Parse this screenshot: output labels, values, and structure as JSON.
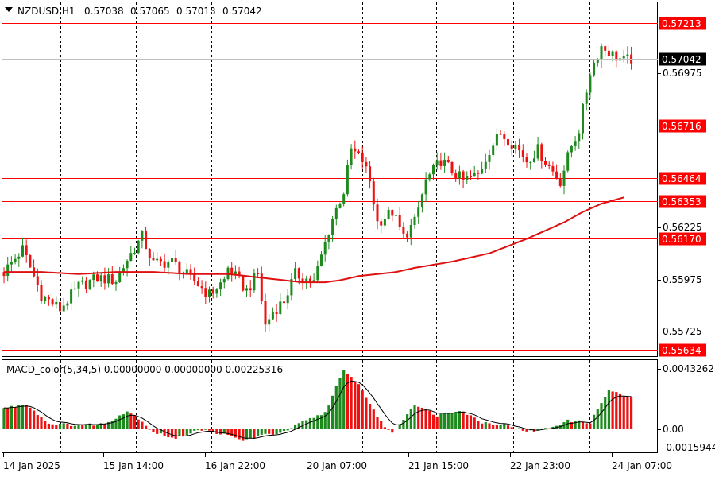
{
  "header": {
    "symbol": "NZDUSD,H1",
    "open": "0.57038",
    "high": "0.57065",
    "low": "0.57013",
    "close": "0.57042"
  },
  "colors": {
    "bull": "#1e8a1e",
    "bear": "#ee1111",
    "level": "#ff0000",
    "ma": "#dd1111",
    "grid": "#000000",
    "current_price_bg": "#000000"
  },
  "price_axis": {
    "ticks": [
      "0.56975",
      "0.56225",
      "0.55975",
      "0.55725"
    ]
  },
  "levels": [
    {
      "price": 0.57213,
      "label": "0.57213"
    },
    {
      "price": 0.56716,
      "label": "0.56716"
    },
    {
      "price": 0.56464,
      "label": "0.56464"
    },
    {
      "price": 0.56353,
      "label": "0.56353"
    },
    {
      "price": 0.5617,
      "label": "0.56170"
    },
    {
      "price": 0.55634,
      "label": "0.55634"
    }
  ],
  "current_price": {
    "price": 0.57042,
    "label": "0.57042"
  },
  "macd": {
    "title": "MACD_color(5,34,5) 0.00000000 0.00000000 0.00225316",
    "ticks": [
      "0.0043262",
      "0.00",
      "-0.0015944"
    ]
  },
  "time_axis": {
    "labels": [
      "14 Jan 2025",
      "15 Jan 14:00",
      "16 Jan 22:00",
      "20 Jan 07:00",
      "21 Jan 15:00",
      "22 Jan 23:00",
      "24 Jan 07:00"
    ]
  },
  "chart_data": {
    "type": "candlestick",
    "symbol": "NZDUSD",
    "timeframe": "H1",
    "y_range": [
      0.556,
      0.5725
    ],
    "close_path": [
      [
        0,
        0.5601
      ],
      [
        5,
        0.5612
      ],
      [
        10,
        0.559
      ],
      [
        15,
        0.5583
      ],
      [
        20,
        0.5594
      ],
      [
        25,
        0.5598
      ],
      [
        30,
        0.5597
      ],
      [
        33,
        0.5607
      ],
      [
        37,
        0.5618
      ],
      [
        40,
        0.5605
      ],
      [
        45,
        0.5606
      ],
      [
        48,
        0.5601
      ],
      [
        52,
        0.5595
      ],
      [
        55,
        0.559
      ],
      [
        59,
        0.5597
      ],
      [
        60,
        0.5603
      ],
      [
        65,
        0.5592
      ],
      [
        68,
        0.56
      ],
      [
        70,
        0.5575
      ],
      [
        72,
        0.5582
      ],
      [
        75,
        0.5587
      ],
      [
        78,
        0.56
      ],
      [
        83,
        0.5596
      ],
      [
        86,
        0.5615
      ],
      [
        88,
        0.5627
      ],
      [
        91,
        0.564
      ],
      [
        93,
        0.566
      ],
      [
        96,
        0.5655
      ],
      [
        98,
        0.5645
      ],
      [
        100,
        0.5625
      ],
      [
        104,
        0.563
      ],
      [
        107,
        0.5618
      ],
      [
        110,
        0.5625
      ],
      [
        113,
        0.5645
      ],
      [
        117,
        0.5655
      ],
      [
        120,
        0.565
      ],
      [
        123,
        0.5645
      ],
      [
        127,
        0.5648
      ],
      [
        130,
        0.566
      ],
      [
        133,
        0.5668
      ],
      [
        137,
        0.5662
      ],
      [
        140,
        0.5655
      ],
      [
        143,
        0.566
      ],
      [
        146,
        0.5652
      ],
      [
        149,
        0.5645
      ],
      [
        152,
        0.5662
      ],
      [
        154,
        0.567
      ],
      [
        157,
        0.5698
      ],
      [
        160,
        0.571
      ],
      [
        163,
        0.5706
      ],
      [
        166,
        0.5703
      ],
      [
        168,
        0.5704
      ]
    ],
    "moving_average": [
      [
        0,
        0.5601
      ],
      [
        10,
        0.5601
      ],
      [
        20,
        0.56
      ],
      [
        30,
        0.5601
      ],
      [
        40,
        0.5601
      ],
      [
        50,
        0.56
      ],
      [
        60,
        0.56
      ],
      [
        70,
        0.5598
      ],
      [
        80,
        0.5596
      ],
      [
        86,
        0.5596
      ],
      [
        90,
        0.5597
      ],
      [
        95,
        0.5599
      ],
      [
        100,
        0.56
      ],
      [
        105,
        0.5601
      ],
      [
        110,
        0.5603
      ],
      [
        120,
        0.5606
      ],
      [
        130,
        0.561
      ],
      [
        140,
        0.5617
      ],
      [
        150,
        0.5625
      ],
      [
        155,
        0.563
      ],
      [
        160,
        0.5634
      ],
      [
        166,
        0.5637
      ]
    ],
    "macd_range": [
      -0.0015944,
      0.0043262
    ],
    "macd_path": [
      [
        0,
        0.0015
      ],
      [
        6,
        0.0018
      ],
      [
        12,
        0.0004
      ],
      [
        20,
        0.0003
      ],
      [
        27,
        0.0004
      ],
      [
        33,
        0.0013
      ],
      [
        36,
        0.0008
      ],
      [
        40,
        -0.0002
      ],
      [
        46,
        -0.0007
      ],
      [
        52,
        0.0
      ],
      [
        58,
        -0.0003
      ],
      [
        64,
        -0.0008
      ],
      [
        70,
        -0.0004
      ],
      [
        75,
        -0.0002
      ],
      [
        80,
        0.0005
      ],
      [
        86,
        0.0012
      ],
      [
        91,
        0.0042
      ],
      [
        95,
        0.0032
      ],
      [
        101,
        0.0005
      ],
      [
        104,
        -0.0003
      ],
      [
        110,
        0.0018
      ],
      [
        116,
        0.001
      ],
      [
        122,
        0.0014
      ],
      [
        128,
        0.0005
      ],
      [
        135,
        0.0003
      ],
      [
        140,
        -0.0002
      ],
      [
        146,
        0.0001
      ],
      [
        151,
        0.0006
      ],
      [
        157,
        0.0005
      ],
      [
        162,
        0.0028
      ],
      [
        168,
        0.0022
      ]
    ]
  }
}
